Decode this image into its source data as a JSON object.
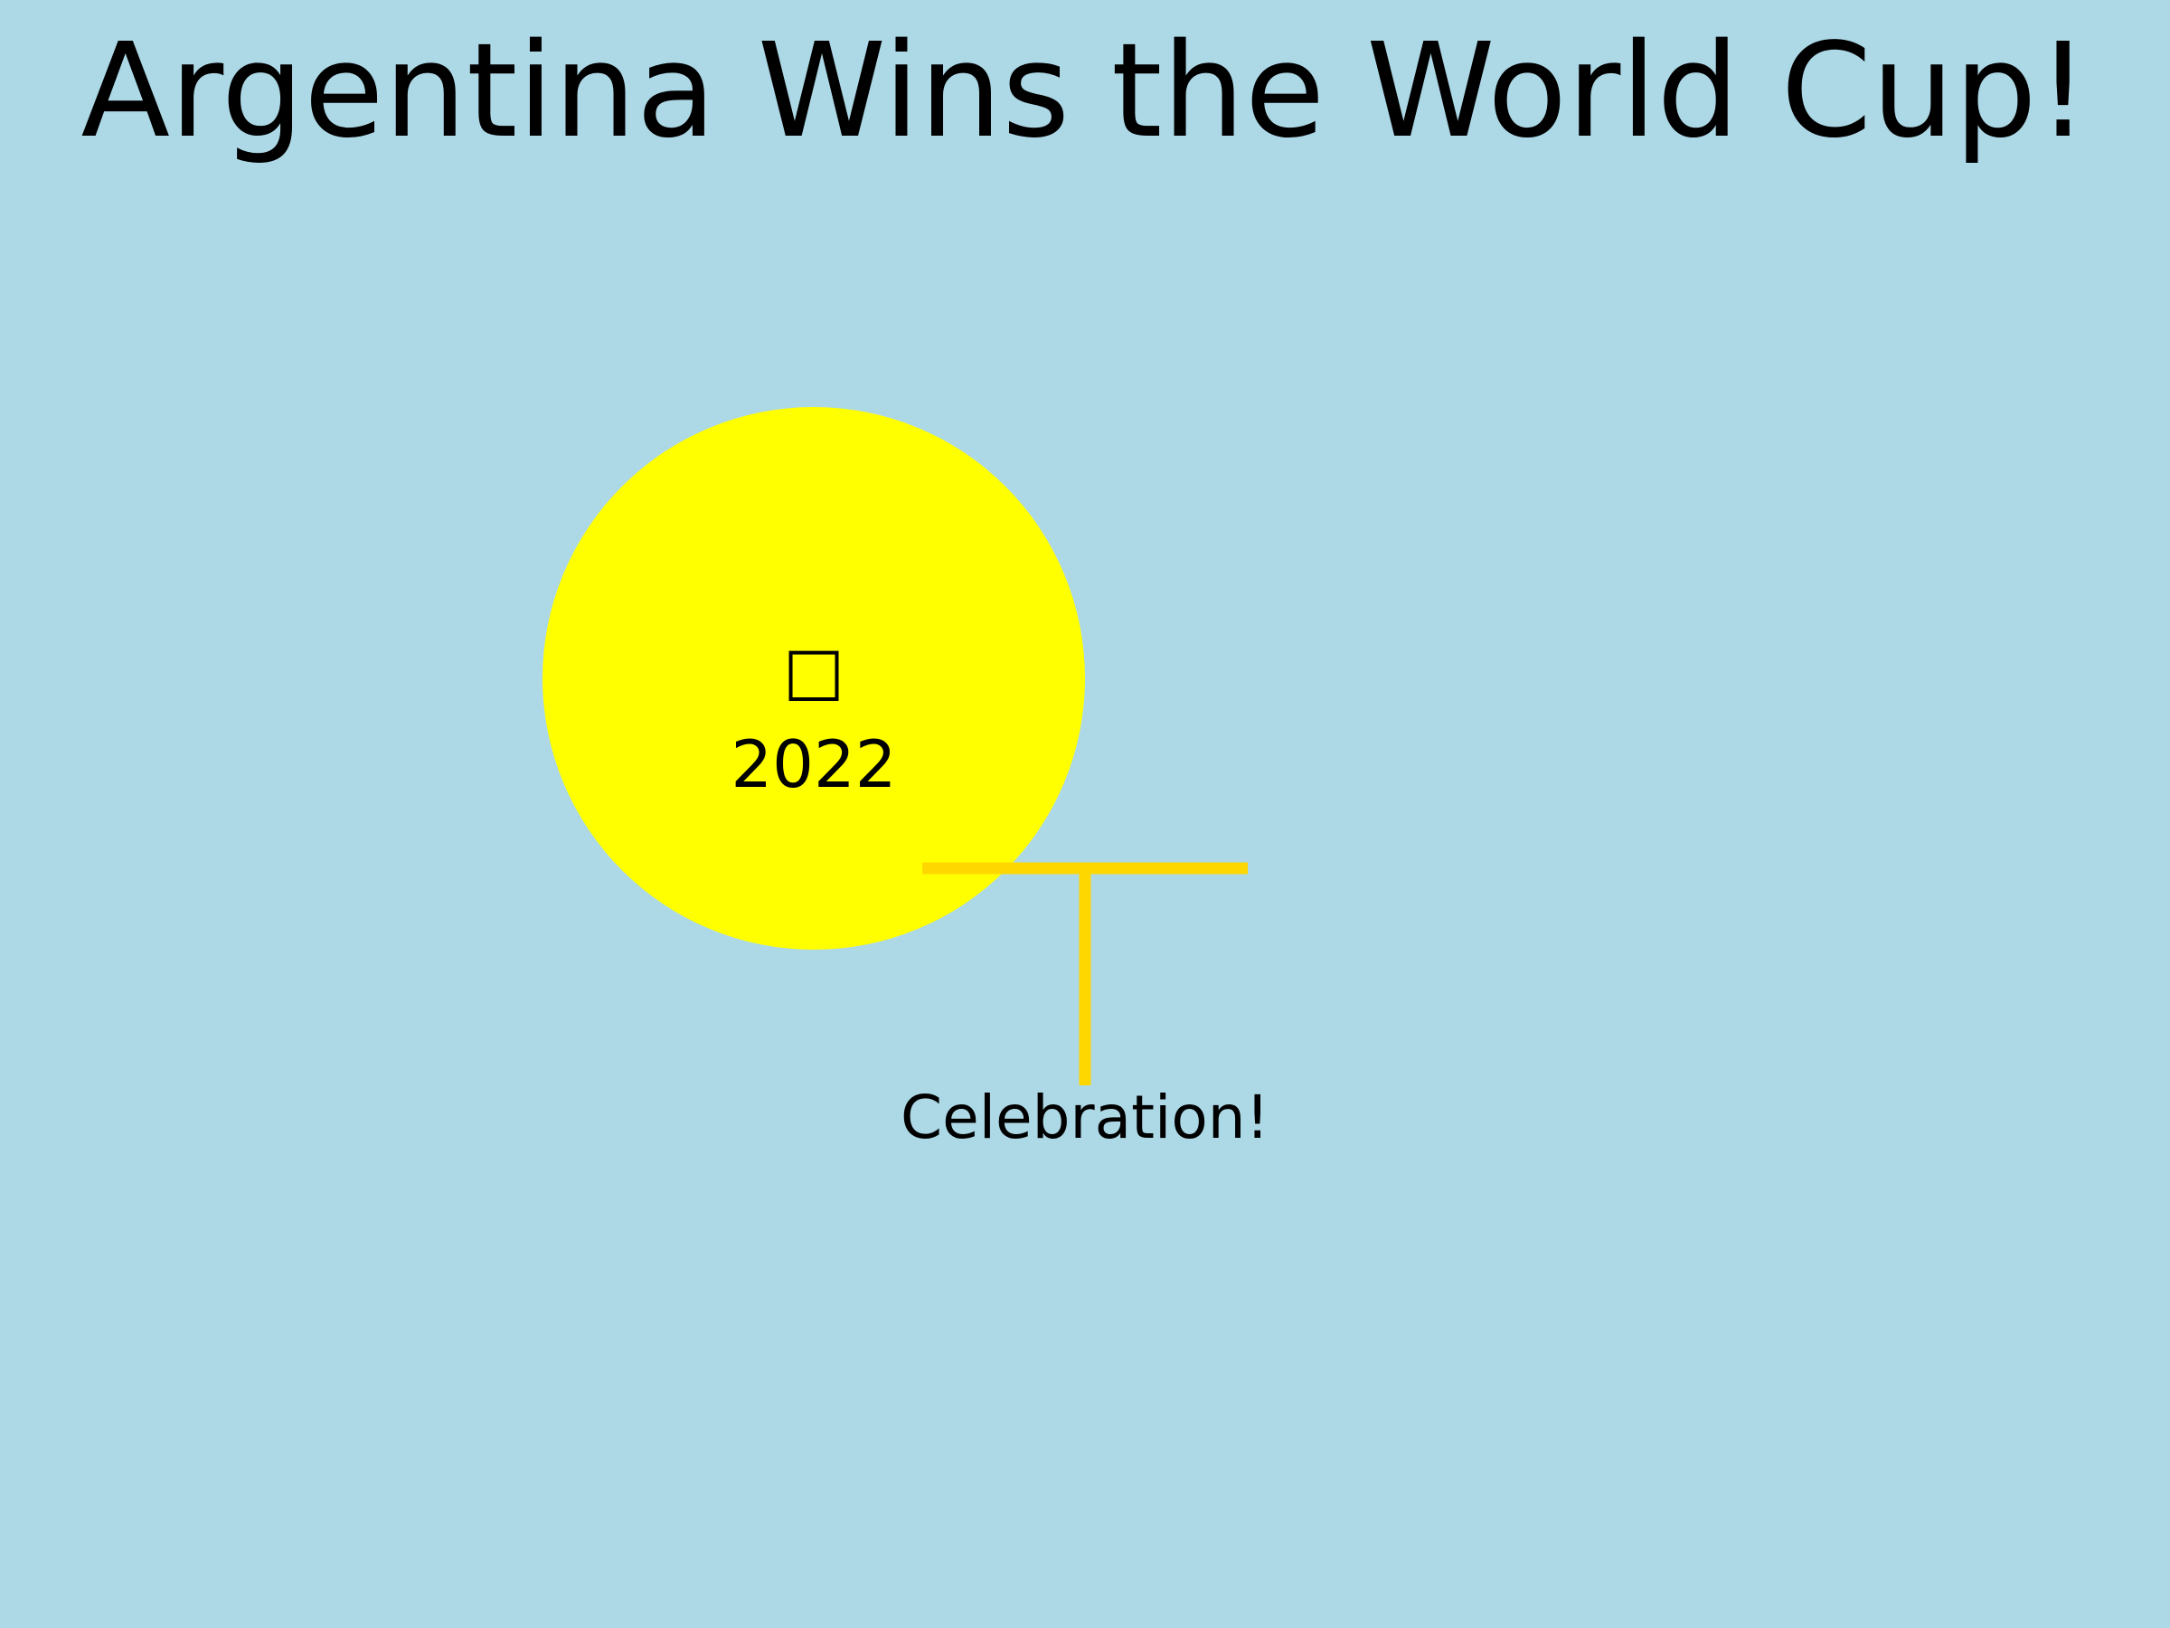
{
  "title": "Argentina Wins the World Cup!",
  "sun": {
    "glyph": "□",
    "year": "2022",
    "color": "#ffff00"
  },
  "flagpole": {
    "color": "#ffd700"
  },
  "caption": "Celebration!",
  "background_color": "#add8e6"
}
